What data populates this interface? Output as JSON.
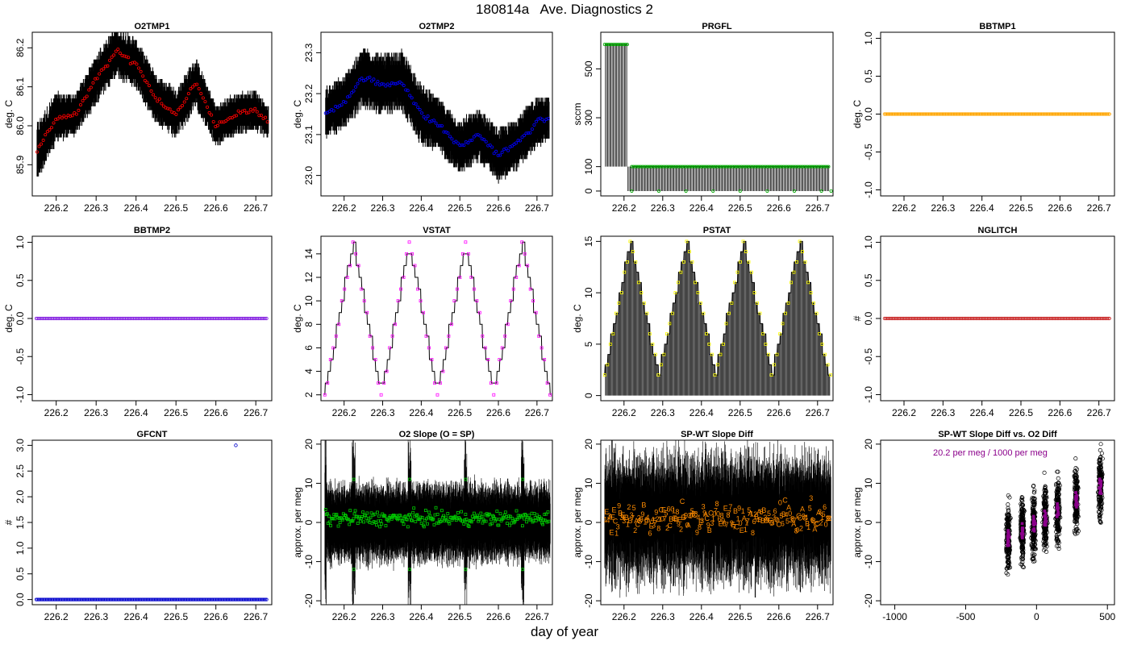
{
  "title": "180814a   Ave. Diagnostics 2",
  "xlabel_common": "day of year",
  "chart_data": [
    {
      "id": "o2tmp1",
      "type": "line",
      "title": "O2TMP1",
      "ylabel": "deg. C",
      "xlim": [
        226.14,
        226.74
      ],
      "ylim": [
        85.82,
        86.24
      ],
      "x_ticks": [
        226.2,
        226.3,
        226.4,
        226.5,
        226.6,
        226.7
      ],
      "y_ticks": [
        "85.9",
        "86.0",
        "86.1",
        "86.2"
      ],
      "y_tick_vals": [
        85.9,
        86.0,
        86.1,
        86.2
      ],
      "raw_color": "#000000",
      "point_color": "#ff0000",
      "x_points": [
        226.15,
        226.2,
        226.25,
        226.3,
        226.35,
        226.4,
        226.45,
        226.5,
        226.55,
        226.6,
        226.65,
        226.7,
        226.73
      ],
      "mean_points": [
        85.93,
        86.02,
        86.03,
        86.12,
        86.19,
        86.16,
        86.07,
        86.03,
        86.11,
        86.0,
        86.03,
        86.04,
        86.01
      ],
      "band_points": [
        0.07,
        0.06,
        0.05,
        0.06,
        0.06,
        0.06,
        0.06,
        0.06,
        0.06,
        0.05,
        0.05,
        0.05,
        0.04
      ]
    },
    {
      "id": "o2tmp2",
      "type": "line",
      "title": "O2TMP2",
      "ylabel": "deg. C",
      "xlim": [
        226.14,
        226.74
      ],
      "ylim": [
        22.95,
        23.35
      ],
      "x_ticks": [
        226.2,
        226.3,
        226.4,
        226.5,
        226.6,
        226.7
      ],
      "y_ticks": [
        "23.0",
        "23.1",
        "23.2",
        "23.3"
      ],
      "y_tick_vals": [
        23.0,
        23.1,
        23.2,
        23.3
      ],
      "raw_color": "#000000",
      "point_color": "#0000ff",
      "x_points": [
        226.15,
        226.2,
        226.25,
        226.3,
        226.35,
        226.4,
        226.45,
        226.5,
        226.55,
        226.6,
        226.65,
        226.7,
        226.73
      ],
      "mean_points": [
        23.15,
        23.18,
        23.24,
        23.22,
        23.23,
        23.15,
        23.12,
        23.07,
        23.1,
        23.05,
        23.08,
        23.13,
        23.14
      ],
      "band_points": [
        0.06,
        0.06,
        0.07,
        0.07,
        0.07,
        0.07,
        0.06,
        0.06,
        0.06,
        0.06,
        0.06,
        0.06,
        0.05
      ]
    },
    {
      "id": "prgfl",
      "type": "line",
      "title": "PRGFL",
      "ylabel": "sccm",
      "xlim": [
        226.14,
        226.74
      ],
      "ylim": [
        -20,
        650
      ],
      "x_ticks": [
        226.2,
        226.3,
        226.4,
        226.5,
        226.6,
        226.7
      ],
      "y_ticks": [
        "0",
        "100",
        "300",
        "500"
      ],
      "y_tick_vals": [
        0,
        100,
        300,
        500
      ],
      "raw_color": "#000000",
      "point_color": "#00aa00",
      "segments": [
        {
          "from": 226.15,
          "to": 226.21,
          "value": 600
        },
        {
          "from": 226.22,
          "to": 226.73,
          "value": 100
        }
      ],
      "low_value": 0
    },
    {
      "id": "bbtmp1",
      "type": "scatter",
      "title": "BBTMP1",
      "ylabel": "deg. C",
      "xlim": [
        226.14,
        226.74
      ],
      "ylim": [
        -1.08,
        1.08
      ],
      "x_ticks": [
        226.2,
        226.3,
        226.4,
        226.5,
        226.6,
        226.7
      ],
      "y_ticks": [
        "-1.0",
        "-0.5",
        "0.0",
        "0.5",
        "1.0"
      ],
      "y_tick_vals": [
        -1.0,
        -0.5,
        0.0,
        0.5,
        1.0
      ],
      "point_color": "#ffa500",
      "value": 0,
      "from": 226.15,
      "to": 226.73
    },
    {
      "id": "bbtmp2",
      "type": "scatter",
      "title": "BBTMP2",
      "ylabel": "deg. C",
      "xlim": [
        226.14,
        226.74
      ],
      "ylim": [
        -1.08,
        1.08
      ],
      "x_ticks": [
        226.2,
        226.3,
        226.4,
        226.5,
        226.6,
        226.7
      ],
      "y_ticks": [
        "-1.0",
        "-0.5",
        "0.0",
        "0.5",
        "1.0"
      ],
      "y_tick_vals": [
        -1.0,
        -0.5,
        0.0,
        0.5,
        1.0
      ],
      "point_color": "#8a2be2",
      "value": 0,
      "from": 226.15,
      "to": 226.73
    },
    {
      "id": "vstat",
      "type": "line",
      "title": "VSTAT",
      "ylabel": "deg. C",
      "xlim": [
        226.14,
        226.74
      ],
      "ylim": [
        1.5,
        15.5
      ],
      "x_ticks": [
        226.2,
        226.3,
        226.4,
        226.5,
        226.6,
        226.7
      ],
      "y_ticks": [
        "2",
        "4",
        "6",
        "8",
        "10",
        "12",
        "14"
      ],
      "y_tick_vals": [
        2,
        4,
        6,
        8,
        10,
        12,
        14
      ],
      "raw_color": "#000000",
      "point_color": "#ff00ff",
      "peaks": [
        226.225,
        226.37,
        226.515,
        226.663
      ],
      "troughs": [
        226.15,
        226.297,
        226.443,
        226.588,
        226.735
      ],
      "min": 2,
      "max": 15
    },
    {
      "id": "pstat",
      "type": "line",
      "title": "PSTAT",
      "ylabel": "deg. C",
      "xlim": [
        226.14,
        226.74
      ],
      "ylim": [
        -0.5,
        15.5
      ],
      "x_ticks": [
        226.2,
        226.3,
        226.4,
        226.5,
        226.6,
        226.7
      ],
      "y_ticks": [
        "0",
        "5",
        "10",
        "15"
      ],
      "y_tick_vals": [
        0,
        5,
        10,
        15
      ],
      "raw_color": "#000000",
      "point_color": "#ffff00",
      "peaks": [
        226.218,
        226.363,
        226.51,
        226.655
      ],
      "troughs": [
        226.15,
        226.29,
        226.437,
        226.583,
        226.73
      ],
      "min": 2,
      "max": 15
    },
    {
      "id": "nglitch",
      "type": "scatter",
      "title": "NGLITCH",
      "ylabel": "#",
      "xlim": [
        226.14,
        226.74
      ],
      "ylim": [
        -1.08,
        1.08
      ],
      "x_ticks": [
        226.2,
        226.3,
        226.4,
        226.5,
        226.6,
        226.7
      ],
      "y_ticks": [
        "-1.0",
        "-0.5",
        "0.0",
        "0.5",
        "1.0"
      ],
      "y_tick_vals": [
        -1.0,
        -0.5,
        0.0,
        0.5,
        1.0
      ],
      "point_color": "#cc3333",
      "value": 0,
      "from": 226.15,
      "to": 226.73
    },
    {
      "id": "gfcnt",
      "type": "scatter",
      "title": "GFCNT",
      "ylabel": "#",
      "xlim": [
        226.14,
        226.74
      ],
      "ylim": [
        -0.1,
        3.1
      ],
      "x_ticks": [
        226.2,
        226.3,
        226.4,
        226.5,
        226.6,
        226.7
      ],
      "y_ticks": [
        "0.0",
        "0.5",
        "1.0",
        "1.5",
        "2.0",
        "2.5",
        "3.0"
      ],
      "y_tick_vals": [
        0,
        0.5,
        1.0,
        1.5,
        2.0,
        2.5,
        3.0
      ],
      "point_color": "#0000cc",
      "value": 0,
      "from": 226.15,
      "to": 226.73,
      "outliers": [
        {
          "x": 226.65,
          "y": 3
        }
      ]
    },
    {
      "id": "o2slope",
      "type": "line",
      "title": "O2 Slope (O = SP)",
      "ylabel": "approx. per meg",
      "xlim": [
        226.14,
        226.74
      ],
      "ylim": [
        -21,
        21
      ],
      "x_ticks": [
        226.2,
        226.3,
        226.4,
        226.5,
        226.6,
        226.7
      ],
      "y_ticks": [
        "-20",
        "-10",
        "0",
        "10",
        "20"
      ],
      "y_tick_vals": [
        -20,
        -10,
        0,
        10,
        20
      ],
      "raw_color": "#000000",
      "point_color": "#00cc00",
      "band": [
        -5,
        7
      ],
      "spike_times": [
        226.15,
        226.225,
        226.37,
        226.515,
        226.663
      ]
    },
    {
      "id": "spwt",
      "type": "line",
      "title": "SP-WT Slope Diff",
      "ylabel": "approx. per meg",
      "xlim": [
        226.14,
        226.74
      ],
      "ylim": [
        -21,
        21
      ],
      "x_ticks": [
        226.2,
        226.3,
        226.4,
        226.5,
        226.6,
        226.7
      ],
      "y_ticks": [
        "-20",
        "-10",
        "0",
        "10",
        "20"
      ],
      "y_tick_vals": [
        -20,
        -10,
        0,
        10,
        20
      ],
      "raw_color": "#000000",
      "point_color": "#ff8c00",
      "band": [
        -10,
        14
      ],
      "label_chars": [
        "0",
        "1",
        "2",
        "3",
        "4",
        "5",
        "6",
        "7",
        "8",
        "9",
        "A",
        "B",
        "C",
        "E"
      ]
    },
    {
      "id": "spwt_vs_o2",
      "type": "scatter",
      "title": "SP-WT Slope Diff vs. O2 Diff",
      "ylabel": "approx. per meg",
      "xlim": [
        -1100,
        550
      ],
      "ylim": [
        -21,
        21
      ],
      "x_ticks": [
        -1000,
        -500,
        0,
        500
      ],
      "x_tick_labels": [
        "-1000",
        "-500",
        "0",
        "500"
      ],
      "y_ticks": [
        "-20",
        "-10",
        "0",
        "10",
        "20"
      ],
      "y_tick_vals": [
        -20,
        -10,
        0,
        10,
        20
      ],
      "point_color": "#000000",
      "fit_color": "#8b008b",
      "annotation": "20.2 per meg / 1000 per meg",
      "cluster_centers": [
        -200,
        -100,
        -20,
        60,
        150,
        280,
        450
      ],
      "slope_per_1000": 20.2
    }
  ]
}
